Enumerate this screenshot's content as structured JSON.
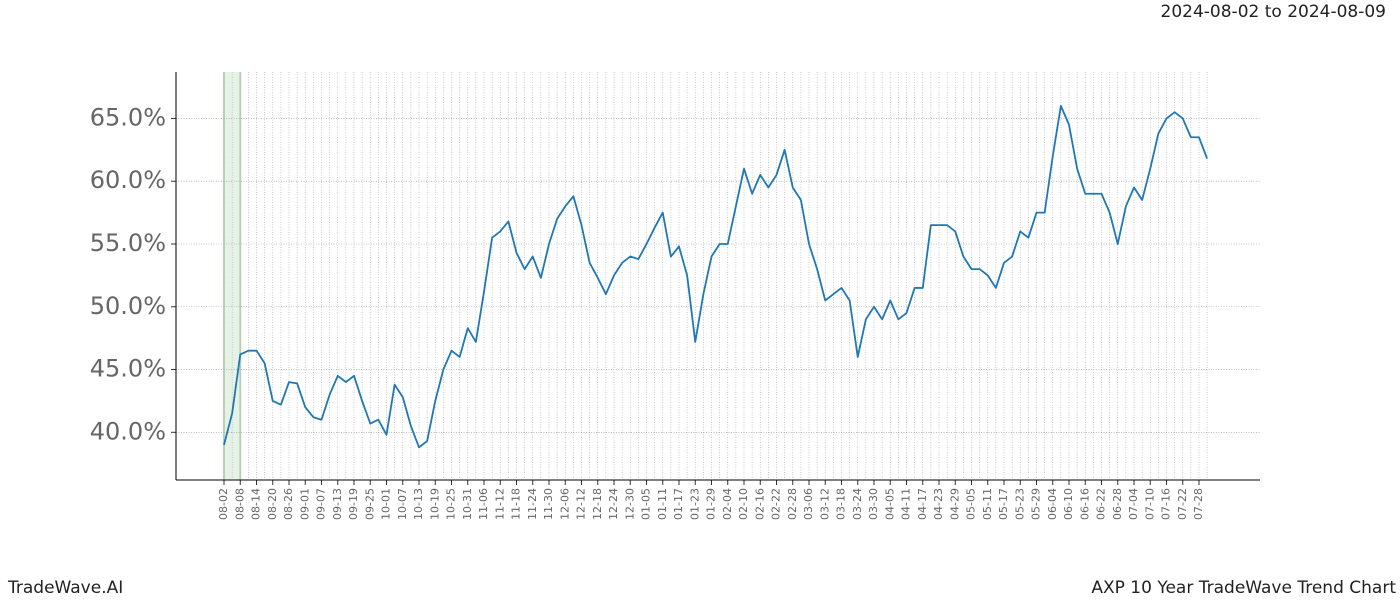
{
  "chart_data": {
    "type": "line",
    "title": "AXP 10 Year TradeWave Trend Chart",
    "subtitle": "2024-08-02 to 2024-08-09",
    "brand": "TradeWave.AI",
    "categories": [
      "08-02",
      null,
      "08-08",
      null,
      "08-14",
      null,
      "08-20",
      null,
      "08-26",
      null,
      "09-01",
      null,
      "09-07",
      null,
      "09-13",
      null,
      "09-19",
      null,
      "09-25",
      null,
      "10-01",
      null,
      "10-07",
      null,
      "10-13",
      null,
      "10-19",
      null,
      "10-25",
      null,
      "10-31",
      null,
      "11-06",
      null,
      "11-12",
      null,
      "11-18",
      null,
      "11-24",
      null,
      "11-30",
      null,
      "12-06",
      null,
      "12-12",
      null,
      "12-18",
      null,
      "12-24",
      null,
      "12-30",
      null,
      "01-05",
      null,
      "01-11",
      null,
      "01-17",
      null,
      "01-23",
      null,
      "01-29",
      null,
      "02-04",
      null,
      "02-10",
      null,
      "02-16",
      null,
      "02-22",
      null,
      "02-28",
      null,
      "03-06",
      null,
      "03-12",
      null,
      "03-18",
      null,
      "03-24",
      null,
      "03-30",
      null,
      "04-05",
      null,
      "04-11",
      null,
      "04-17",
      null,
      "04-23",
      null,
      "04-29",
      null,
      "05-05",
      null,
      "05-11",
      null,
      "05-17",
      null,
      "05-23",
      null,
      "05-29",
      null,
      "06-04",
      null,
      "06-10",
      null,
      "06-16",
      null,
      "06-22",
      null,
      "06-28",
      null,
      "07-04",
      null,
      "07-10",
      null,
      "07-16",
      null,
      "07-22",
      null,
      "07-28",
      null
    ],
    "series": [
      {
        "name": "AXP",
        "color": "#1f77b4",
        "values": [
          39.0,
          41.5,
          46.2,
          46.5,
          46.5,
          45.5,
          42.5,
          42.2,
          44.0,
          43.9,
          42.0,
          41.2,
          41.0,
          43.0,
          44.5,
          44.0,
          44.5,
          42.5,
          40.7,
          41.0,
          39.8,
          43.8,
          42.8,
          40.5,
          38.8,
          39.3,
          42.5,
          45.0,
          46.5,
          46.0,
          48.3,
          47.2,
          51.2,
          55.5,
          56.0,
          56.8,
          54.3,
          53.0,
          54.0,
          52.3,
          55.0,
          57.0,
          58.0,
          58.8,
          56.5,
          53.5,
          52.3,
          51.0,
          52.5,
          53.5,
          54.0,
          53.8,
          55.0,
          56.3,
          57.5,
          54.0,
          54.8,
          52.5,
          47.2,
          51.0,
          54.0,
          55.0,
          55.0,
          58.0,
          61.0,
          59.0,
          60.5,
          59.5,
          60.5,
          62.5,
          59.5,
          58.5,
          55.0,
          53.0,
          50.5,
          51.0,
          51.5,
          50.5,
          46.0,
          49.0,
          50.0,
          49.0,
          50.5,
          49.0,
          49.5,
          51.5,
          51.5,
          56.5,
          56.5,
          56.5,
          56.0,
          54.0,
          53.0,
          53.0,
          52.5,
          51.5,
          53.5,
          54.0,
          56.0,
          55.5,
          57.5,
          57.5,
          62.0,
          66.0,
          64.5,
          61.0,
          59.0,
          59.0,
          59.0,
          57.5,
          55.0,
          58.0,
          59.5,
          58.5,
          61.0,
          63.8,
          65.0,
          65.5,
          65.0,
          63.5,
          63.5,
          61.8
        ]
      }
    ],
    "highlight": {
      "from": "08-02",
      "to": "08-08",
      "color": "#e6f2e6",
      "edge": "#b8d8b8"
    },
    "ylim": [
      36.2,
      68.7
    ],
    "yticks": [
      {
        "value": 40,
        "label": "40.0%"
      },
      {
        "value": 45,
        "label": "45.0%"
      },
      {
        "value": 50,
        "label": "50.0%"
      },
      {
        "value": 55,
        "label": "55.0%"
      },
      {
        "value": 60,
        "label": "60.0%"
      },
      {
        "value": 65,
        "label": "65.0%"
      }
    ],
    "grid": true
  }
}
